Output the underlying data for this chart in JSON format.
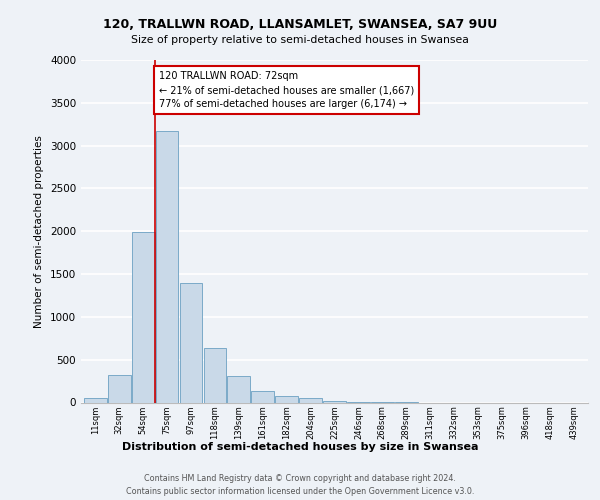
{
  "title_line1": "120, TRALLWN ROAD, LLANSAMLET, SWANSEA, SA7 9UU",
  "title_line2": "Size of property relative to semi-detached houses in Swansea",
  "bar_labels": [
    "11sqm",
    "32sqm",
    "54sqm",
    "75sqm",
    "97sqm",
    "118sqm",
    "139sqm",
    "161sqm",
    "182sqm",
    "204sqm",
    "225sqm",
    "246sqm",
    "268sqm",
    "289sqm",
    "311sqm",
    "332sqm",
    "353sqm",
    "375sqm",
    "396sqm",
    "418sqm",
    "439sqm"
  ],
  "bar_values": [
    50,
    325,
    1990,
    3170,
    1390,
    640,
    310,
    130,
    75,
    50,
    15,
    10,
    5,
    5,
    0,
    0,
    0,
    0,
    0,
    0,
    0
  ],
  "bar_color": "#c9d9e8",
  "bar_edge_color": "#7aaac8",
  "pct_smaller": 21,
  "pct_larger": 77,
  "count_smaller": "1,667",
  "count_larger": "6,174",
  "vline_color": "#cc0000",
  "ylabel": "Number of semi-detached properties",
  "xlabel": "Distribution of semi-detached houses by size in Swansea",
  "ylim": [
    0,
    4000
  ],
  "yticks": [
    0,
    500,
    1000,
    1500,
    2000,
    2500,
    3000,
    3500,
    4000
  ],
  "annotation_box_color": "#cc0000",
  "background_color": "#eef2f7",
  "footer_line1": "Contains HM Land Registry data © Crown copyright and database right 2024.",
  "footer_line2": "Contains public sector information licensed under the Open Government Licence v3.0."
}
